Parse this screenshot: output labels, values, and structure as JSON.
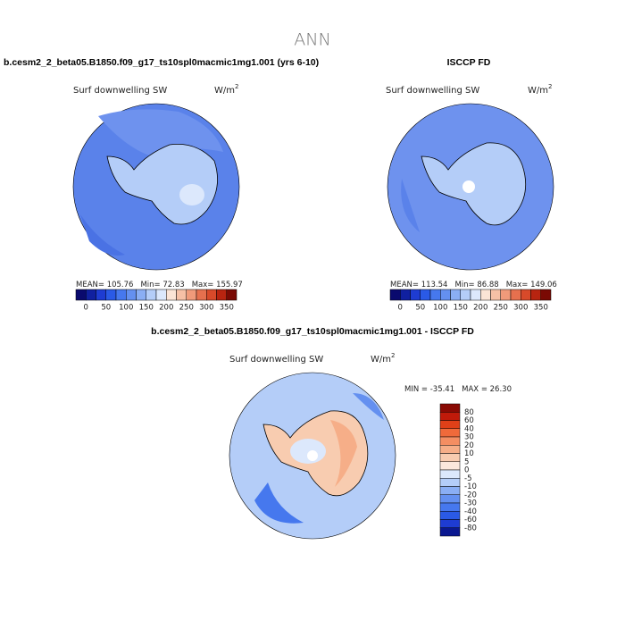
{
  "title": "ANN",
  "panels": [
    {
      "title": "b.cesm2_2_beta05.B1850.f09_g17_ts10spl0macmic1mg1.001 (yrs 6-10)",
      "variable": "Surf downwelling SW",
      "units": "W/m",
      "units_power": "2",
      "stats": [
        "MEAN= 105.76",
        "Min=  72.83",
        "Max= 155.97"
      ]
    },
    {
      "title": "ISCCP FD",
      "variable": "Surf downwelling SW",
      "units": "W/m",
      "units_power": "2",
      "stats": [
        "MEAN= 113.54",
        "Min=  86.88",
        "Max= 149.06"
      ]
    },
    {
      "title": "b.cesm2_2_beta05.B1850.f09_g17_ts10spl0macmic1mg1.001 - ISCCP FD",
      "variable": "Surf downwelling SW",
      "units": "W/m",
      "units_power": "2",
      "stats": [
        "MIN = -35.41",
        "MAX =  26.30"
      ]
    }
  ],
  "colorbar_main": {
    "labels": [
      0,
      50,
      100,
      150,
      200,
      250,
      300,
      350
    ],
    "colors": [
      "#0a0a6e",
      "#1020a0",
      "#1e3cd2",
      "#2a5ae6",
      "#4678ee",
      "#6490f0",
      "#8aaef4",
      "#b4cdf8",
      "#dce8fc",
      "#fbe4d6",
      "#f6c0a6",
      "#f09a7a",
      "#e6704e",
      "#d84a2a",
      "#b82410",
      "#7a0a04"
    ]
  },
  "colorbar_diff": {
    "labels": [
      80,
      60,
      40,
      30,
      20,
      10,
      5,
      0,
      -5,
      -10,
      -20,
      -30,
      -40,
      -60,
      -80
    ],
    "colors": [
      "#8a0a04",
      "#c01a0a",
      "#e04018",
      "#f06a3a",
      "#f48e62",
      "#f6ae88",
      "#f8ccb0",
      "#fbe8dc",
      "#dce8fc",
      "#b4cdf8",
      "#8aaef4",
      "#6490f0",
      "#4678ee",
      "#2a5ae6",
      "#1e3cd2",
      "#0a1890"
    ]
  }
}
